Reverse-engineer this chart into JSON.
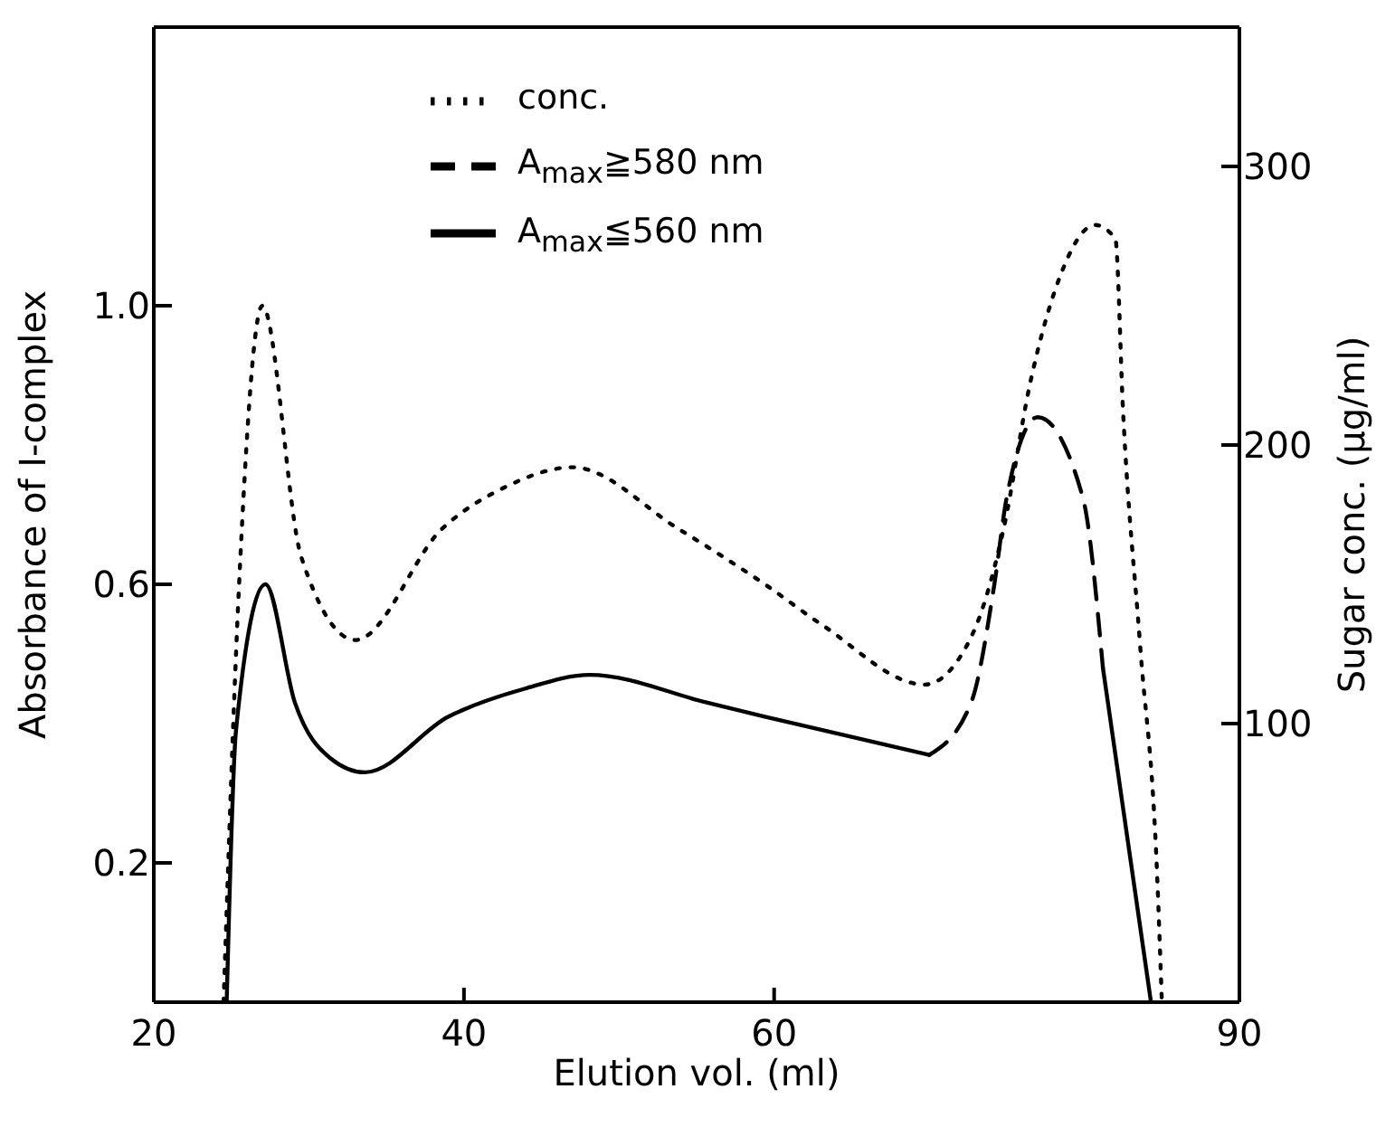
{
  "chart_data": {
    "type": "line",
    "xlabel": "Elution vol. (ml)",
    "ylabel": "Absorbance of I-complex",
    "y2label": "Sugar conc. (μg/ml)",
    "xlim": [
      20,
      90
    ],
    "xticks": [
      20,
      40,
      60,
      90
    ],
    "ylim": [
      0,
      1.4
    ],
    "yticks": [
      0.2,
      0.6,
      {
        "value": 1,
        "label": "1.0"
      }
    ],
    "y2lim": [
      0,
      350
    ],
    "y2ticks": [
      100,
      200,
      300
    ],
    "grid": false,
    "legend": "top",
    "marker": "none",
    "series": [
      {
        "name": "conc.",
        "color": "#000000",
        "axis": "y2",
        "line_style": "dotted",
        "x": [
          24.5,
          25.5,
          27,
          29.5,
          33,
          38.6,
          42.7,
          47,
          53.8,
          59.4,
          63.2,
          69.7,
          72.7,
          74.8,
          76.5,
          78.4,
          80.7,
          82,
          82.5,
          83.6,
          84.7,
          85
        ],
        "values": [
          0,
          150,
          250,
          160,
          130,
          170,
          185,
          192,
          170,
          150,
          135,
          114,
          131,
          170,
          222,
          260,
          279,
          274,
          212,
          128,
          45,
          0
        ]
      },
      {
        "name": "A$_{max}$≧580 nm",
        "color": "#000000",
        "line_style": "dashed",
        "x": [
          70,
          72.7,
          74.2,
          75,
          77,
          79.9,
          81.2
        ],
        "values": [
          0.355,
          0.43,
          0.6,
          0.725,
          0.84,
          0.725,
          0.48
        ]
      },
      {
        "name": "A$_{max}$≦560 nm",
        "color": "#000000",
        "line_style": "solid",
        "x": [
          24.7,
          25.3,
          27.2,
          29.1,
          31.4,
          33.6,
          39,
          43.9,
          48.1,
          55.7,
          59.4,
          70
        ],
        "values": [
          0,
          0.39,
          0.6,
          0.43,
          0.35,
          0.33,
          0.41,
          0.45,
          0.47,
          0.43,
          0.41,
          0.355
        ]
      },
      {
        "color": "#000000",
        "line_style": "solid",
        "x": [
          81.2,
          84.3
        ],
        "values": [
          0.48,
          0
        ]
      }
    ]
  }
}
